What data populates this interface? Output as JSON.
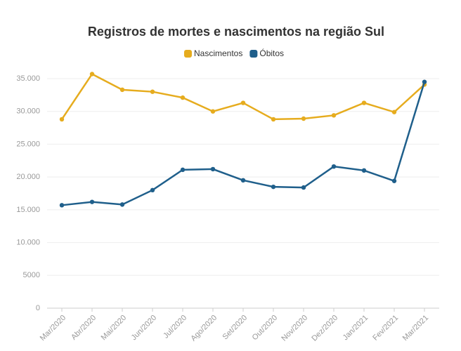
{
  "chart_data": {
    "type": "line",
    "title": "Registros de mortes e nascimentos na região Sul",
    "categories": [
      "Mar/2020",
      "Abr/2020",
      "Mai/2020",
      "Jun/2020",
      "Jul/2020",
      "Ago/2020",
      "Set/2020",
      "Out/2020",
      "Nov/2020",
      "Dez/2020",
      "Jan/2021",
      "Fev/2021",
      "Mar/2021"
    ],
    "series": [
      {
        "name": "Nascimentos",
        "color": "#e6ac1e",
        "values": [
          28800,
          35700,
          33300,
          33000,
          32100,
          30000,
          31300,
          28800,
          28900,
          29400,
          31300,
          29900,
          34100
        ]
      },
      {
        "name": "Óbitos",
        "color": "#1f5f8b",
        "values": [
          15700,
          16200,
          15800,
          18000,
          21100,
          21200,
          19500,
          18500,
          18400,
          21600,
          21000,
          19400,
          34500
        ]
      }
    ],
    "ylim": [
      0,
      35000
    ],
    "yticks": [
      0,
      5000,
      {
        "value": 10000,
        "label": "10.000"
      },
      {
        "value": 15000,
        "label": "15.000"
      },
      {
        "value": 20000,
        "label": "20.000"
      },
      {
        "value": 25000,
        "label": "25.000"
      },
      {
        "value": 30000,
        "label": "30.000"
      },
      {
        "value": 35000,
        "label": "35.000"
      }
    ],
    "grid": true,
    "legend": "top"
  }
}
